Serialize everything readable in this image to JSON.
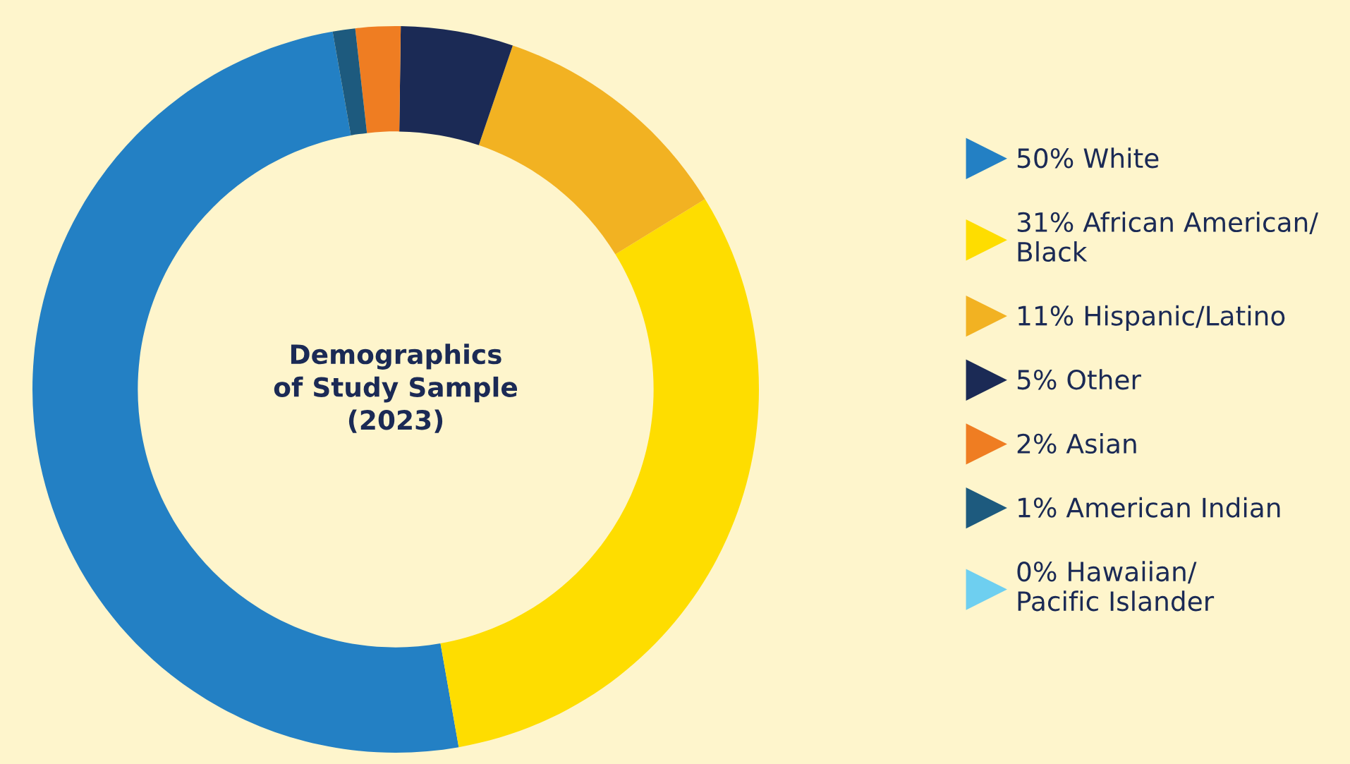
{
  "chart_data": {
    "type": "donut",
    "title": "Demographics\nof Study Sample\n(2023)",
    "categories": [
      "White",
      "African American/\nBlack",
      "Hispanic/Latino",
      "Other",
      "Asian",
      "American Indian",
      "Hawaiian/\nPacific Islander"
    ],
    "values": [
      50,
      31,
      11,
      5,
      2,
      1,
      0
    ],
    "value_labels": [
      "50%",
      "31%",
      "11%",
      "5%",
      "2%",
      "1%",
      "0%"
    ],
    "colors": [
      "#2380c4",
      "#fedd00",
      "#f2b222",
      "#1b2a55",
      "#ef7d22",
      "#1d5a7e",
      "#6ecff0"
    ],
    "legend": "right"
  }
}
